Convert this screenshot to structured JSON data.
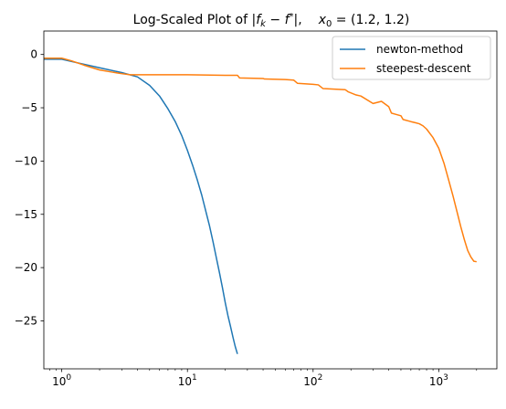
{
  "chart_data": {
    "type": "line",
    "title": "Log-Scaled Plot of |f_k − f*|,   x₀ = (1.2, 1.2)",
    "title_parts": {
      "prefix": "Log-Scaled Plot of ",
      "abs_open": "|",
      "f_k_base": "f",
      "f_k_sub": "k",
      "minus": " − ",
      "f_star_base": "f",
      "f_star_sup": "*",
      "abs_close": "|,",
      "x0_base": "x",
      "x0_sub": "0",
      "equals": " = (1.2, 1.2)"
    },
    "xlabel": "",
    "ylabel": "",
    "xscale": "log",
    "xlim": [
      0.72,
      2900
    ],
    "ylim": [
      -29.5,
      2.2
    ],
    "grid": false,
    "legend_position": "upper-right",
    "x_ticks": [
      {
        "value": 1,
        "base": "10",
        "exp": "0"
      },
      {
        "value": 10,
        "base": "10",
        "exp": "1"
      },
      {
        "value": 100,
        "base": "10",
        "exp": "2"
      },
      {
        "value": 1000,
        "base": "10",
        "exp": "3"
      }
    ],
    "y_ticks": [
      {
        "value": 0,
        "label": "0"
      },
      {
        "value": -5,
        "label": "−5"
      },
      {
        "value": -10,
        "label": "−10"
      },
      {
        "value": -15,
        "label": "−15"
      },
      {
        "value": -20,
        "label": "−20"
      },
      {
        "value": -25,
        "label": "−25"
      }
    ],
    "series": [
      {
        "name": "newton-method",
        "color": "#1f77b4",
        "x": [
          0.72,
          1,
          2,
          3,
          4,
          5,
          6,
          7,
          8,
          9,
          10,
          11,
          12,
          13,
          14,
          15,
          16,
          17,
          18,
          19,
          20,
          21,
          22,
          23,
          24,
          25
        ],
        "y": [
          -0.45,
          -0.45,
          -1.25,
          -1.7,
          -2.1,
          -2.9,
          -3.9,
          -5.1,
          -6.3,
          -7.6,
          -9.0,
          -10.4,
          -11.8,
          -13.2,
          -14.7,
          -16.1,
          -17.6,
          -19.1,
          -20.5,
          -21.9,
          -23.3,
          -24.5,
          -25.5,
          -26.5,
          -27.4,
          -28.1
        ]
      },
      {
        "name": "steepest-descent",
        "color": "#ff7f0e",
        "x": [
          0.72,
          1,
          1.2,
          1.5,
          2,
          2.5,
          3,
          3.5,
          5,
          10,
          20,
          25,
          26,
          40,
          41,
          60,
          70,
          75,
          100,
          110,
          120,
          180,
          190,
          220,
          240,
          300,
          350,
          400,
          420,
          450,
          500,
          520,
          600,
          650,
          700,
          750,
          800,
          900,
          1000,
          1100,
          1200,
          1300,
          1400,
          1500,
          1600,
          1700,
          1800,
          1900,
          2000
        ],
        "y": [
          -0.35,
          -0.35,
          -0.6,
          -1.0,
          -1.45,
          -1.65,
          -1.8,
          -1.9,
          -1.9,
          -1.9,
          -1.95,
          -1.95,
          -2.2,
          -2.25,
          -2.3,
          -2.35,
          -2.4,
          -2.7,
          -2.8,
          -2.85,
          -3.2,
          -3.3,
          -3.5,
          -3.8,
          -3.9,
          -4.6,
          -4.4,
          -4.9,
          -5.5,
          -5.6,
          -5.75,
          -6.1,
          -6.3,
          -6.4,
          -6.5,
          -6.7,
          -7.0,
          -7.8,
          -8.8,
          -10.2,
          -11.8,
          -13.3,
          -14.8,
          -16.2,
          -17.4,
          -18.4,
          -19.0,
          -19.4,
          -19.45
        ]
      }
    ]
  }
}
